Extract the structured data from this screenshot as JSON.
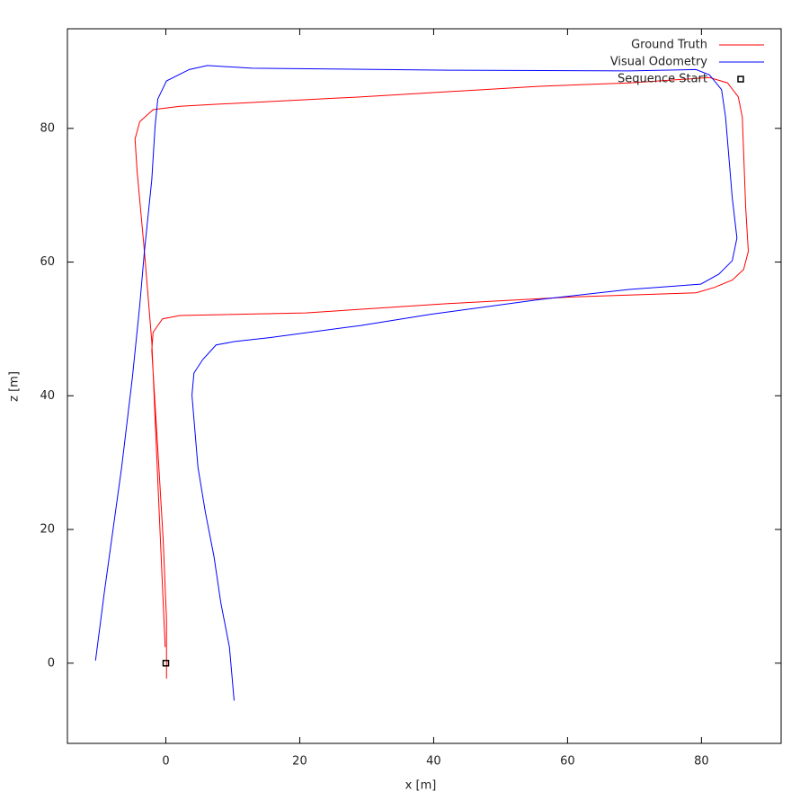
{
  "chart_data": {
    "type": "line",
    "xlabel": "x [m]",
    "ylabel": "z [m]",
    "xlim": [
      -14.7,
      91.9
    ],
    "ylim": [
      -12.0,
      94.9
    ],
    "xticks": [
      0,
      20,
      40,
      60,
      80
    ],
    "yticks": [
      0,
      20,
      40,
      60,
      80
    ],
    "grid": false,
    "legend": "top-right",
    "series": [
      {
        "name": "Ground Truth",
        "color": "#ff0000",
        "marker": "line",
        "x": [
          0.1,
          0.1,
          -0.4,
          -1.2,
          -2.1,
          -1.9,
          -0.5,
          2.1,
          20.9,
          42.4,
          61.1,
          79.2,
          81.9,
          84.6,
          86.3,
          87.0,
          86.6,
          86.1,
          85.5,
          83.9,
          81.2,
          69.2,
          55.8,
          29.0,
          7.5,
          2.1,
          -1.9,
          -3.9,
          -4.6,
          -4.3,
          -3.2,
          -2.1,
          -1.1,
          -0.1
        ],
        "values": [
          -2.3,
          6.5,
          18.5,
          32.0,
          46.8,
          49.5,
          51.5,
          52.0,
          52.4,
          53.8,
          54.8,
          55.4,
          56.2,
          57.3,
          58.9,
          61.6,
          68.3,
          81.7,
          84.7,
          86.8,
          87.6,
          86.8,
          86.3,
          84.7,
          83.6,
          83.3,
          82.8,
          81.0,
          78.4,
          73.7,
          61.6,
          48.1,
          25.0,
          2.4
        ]
      },
      {
        "name": "Visual Odometry",
        "color": "#0000ff",
        "marker": "line",
        "x": [
          10.2,
          9.5,
          8.2,
          7.2,
          5.9,
          4.8,
          3.9,
          4.2,
          5.5,
          7.5,
          10.2,
          15.5,
          29.0,
          39.7,
          55.8,
          69.2,
          79.9,
          82.6,
          84.6,
          85.3,
          84.6,
          83.6,
          83.0,
          81.2,
          79.2,
          69.2,
          42.4,
          12.9,
          6.2,
          3.5,
          0.1,
          -1.2,
          -1.6,
          -2.1,
          -3.2,
          -3.9,
          -5.0,
          -6.6,
          -7.9,
          -9.2,
          -10.5
        ],
        "values": [
          -5.6,
          2.4,
          9.1,
          15.9,
          22.6,
          29.3,
          40.1,
          43.4,
          45.4,
          47.6,
          48.1,
          48.7,
          50.5,
          52.2,
          54.4,
          55.9,
          56.7,
          58.2,
          60.2,
          63.6,
          69.6,
          81.7,
          85.8,
          88.0,
          88.8,
          88.6,
          88.7,
          89.0,
          89.4,
          88.8,
          87.1,
          84.4,
          80.4,
          72.3,
          61.6,
          53.5,
          42.7,
          29.3,
          19.9,
          10.5,
          0.4
        ]
      },
      {
        "name": "Sequence Start",
        "color": "#000000",
        "marker": "square",
        "x": [
          0
        ],
        "values": [
          0
        ]
      }
    ]
  }
}
